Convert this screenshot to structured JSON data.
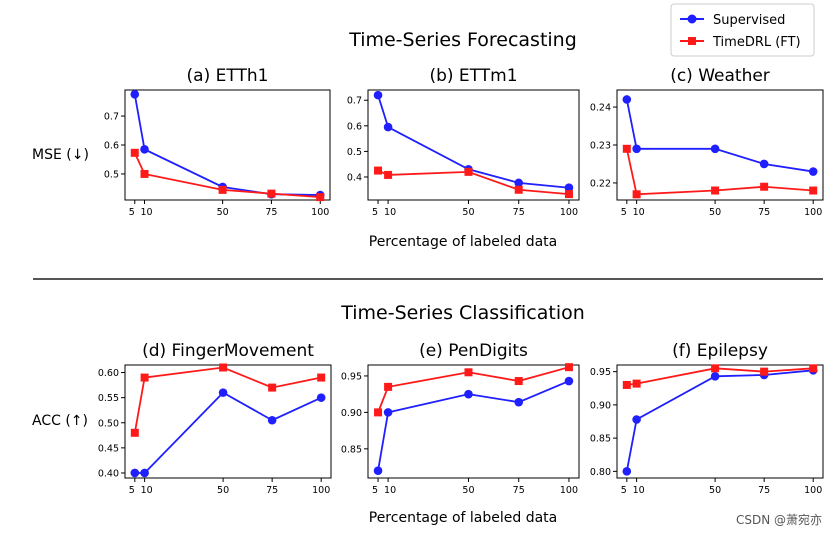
{
  "section_titles": [
    "Time-Series Forecasting",
    "Time-Series Classification"
  ],
  "legend": [
    {
      "name": "Supervised",
      "color": "#1f1fff",
      "marker": "circle"
    },
    {
      "name": "TimeDRL (FT)",
      "color": "#ff1a1a",
      "marker": "square"
    }
  ],
  "row_ylabels": [
    "MSE (↓)",
    "ACC (↑)"
  ],
  "xlabel": "Percentage of labeled data",
  "watermark": "CSDN @萧宛亦",
  "chart_data": [
    {
      "type": "line",
      "title": "(a) ETTh1",
      "x": [
        5,
        10,
        50,
        75,
        100
      ],
      "xticks": [
        5,
        10,
        50,
        75,
        100
      ],
      "ylim": [
        0.41,
        0.79
      ],
      "yticks": [
        0.5,
        0.6,
        0.7
      ],
      "ytick_labels": [
        "0.5",
        "0.6",
        "0.7"
      ],
      "series": [
        {
          "name": "Supervised",
          "values": [
            0.775,
            0.585,
            0.455,
            0.43,
            0.427
          ]
        },
        {
          "name": "TimeDRL (FT)",
          "values": [
            0.573,
            0.5,
            0.445,
            0.432,
            0.42
          ]
        }
      ]
    },
    {
      "type": "line",
      "title": "(b) ETTm1",
      "x": [
        5,
        10,
        50,
        75,
        100
      ],
      "xticks": [
        5,
        10,
        50,
        75,
        100
      ],
      "ylim": [
        0.31,
        0.74
      ],
      "yticks": [
        0.4,
        0.5,
        0.6,
        0.7
      ],
      "ytick_labels": [
        "0.4",
        "0.5",
        "0.6",
        "0.7"
      ],
      "series": [
        {
          "name": "Supervised",
          "values": [
            0.72,
            0.595,
            0.43,
            0.377,
            0.358
          ]
        },
        {
          "name": "TimeDRL (FT)",
          "values": [
            0.425,
            0.408,
            0.42,
            0.35,
            0.333
          ]
        }
      ]
    },
    {
      "type": "line",
      "title": "(c) Weather",
      "x": [
        5,
        10,
        50,
        75,
        100
      ],
      "xticks": [
        5,
        10,
        50,
        75,
        100
      ],
      "ylim": [
        0.2155,
        0.2445
      ],
      "yticks": [
        0.22,
        0.23,
        0.24
      ],
      "ytick_labels": [
        "0.22",
        "0.23",
        "0.24"
      ],
      "series": [
        {
          "name": "Supervised",
          "values": [
            0.242,
            0.229,
            0.229,
            0.225,
            0.223
          ]
        },
        {
          "name": "TimeDRL (FT)",
          "values": [
            0.229,
            0.217,
            0.218,
            0.219,
            0.218
          ]
        }
      ]
    },
    {
      "type": "line",
      "title": "(d) FingerMovement",
      "x": [
        5,
        10,
        50,
        75,
        100
      ],
      "xticks": [
        5,
        10,
        50,
        75,
        100
      ],
      "ylim": [
        0.39,
        0.615
      ],
      "yticks": [
        0.4,
        0.45,
        0.5,
        0.55,
        0.6
      ],
      "ytick_labels": [
        "0.40",
        "0.45",
        "0.50",
        "0.55",
        "0.60"
      ],
      "series": [
        {
          "name": "Supervised",
          "values": [
            0.4,
            0.4,
            0.56,
            0.505,
            0.55
          ]
        },
        {
          "name": "TimeDRL (FT)",
          "values": [
            0.48,
            0.59,
            0.61,
            0.57,
            0.59
          ]
        }
      ]
    },
    {
      "type": "line",
      "title": "(e) PenDigits",
      "x": [
        5,
        10,
        50,
        75,
        100
      ],
      "xticks": [
        5,
        10,
        50,
        75,
        100
      ],
      "ylim": [
        0.81,
        0.965
      ],
      "yticks": [
        0.85,
        0.9,
        0.95
      ],
      "ytick_labels": [
        "0.85",
        "0.90",
        "0.95"
      ],
      "series": [
        {
          "name": "Supervised",
          "values": [
            0.82,
            0.9,
            0.925,
            0.914,
            0.943
          ]
        },
        {
          "name": "TimeDRL (FT)",
          "values": [
            0.9,
            0.935,
            0.955,
            0.943,
            0.962
          ]
        }
      ]
    },
    {
      "type": "line",
      "title": "(f) Epilepsy",
      "x": [
        5,
        10,
        50,
        75,
        100
      ],
      "xticks": [
        5,
        10,
        50,
        75,
        100
      ],
      "ylim": [
        0.79,
        0.96
      ],
      "yticks": [
        0.8,
        0.85,
        0.9,
        0.95
      ],
      "ytick_labels": [
        "0.80",
        "0.85",
        "0.90",
        "0.95"
      ],
      "series": [
        {
          "name": "Supervised",
          "values": [
            0.8,
            0.878,
            0.943,
            0.945,
            0.952
          ]
        },
        {
          "name": "TimeDRL (FT)",
          "values": [
            0.93,
            0.932,
            0.955,
            0.95,
            0.955
          ]
        }
      ]
    }
  ]
}
